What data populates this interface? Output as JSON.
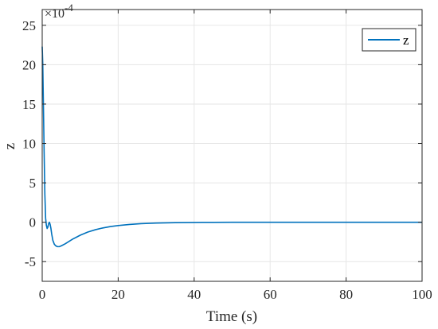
{
  "chart_data": {
    "type": "line",
    "xlabel": "Time (s)",
    "ylabel": "z",
    "exponent_label": "×10",
    "exponent_power": "-4",
    "xlim": [
      0,
      100
    ],
    "ylim": [
      -7.5,
      27
    ],
    "x_ticks": [
      "0",
      "20",
      "40",
      "60",
      "80",
      "100"
    ],
    "y_ticks": [
      "-5",
      "0",
      "5",
      "10",
      "15",
      "20",
      "25"
    ],
    "grid": true,
    "legend": {
      "placement": "top-right",
      "entries": [
        "z"
      ]
    },
    "series": [
      {
        "name": "z",
        "color": "#0072BD",
        "x": [
          0,
          0.15,
          0.3,
          0.5,
          0.7,
          0.9,
          1.1,
          1.3,
          1.5,
          1.7,
          1.9,
          2.1,
          2.3,
          2.5,
          2.8,
          3.2,
          3.6,
          4.0,
          4.5,
          5.0,
          6,
          7,
          8,
          9,
          10,
          12,
          14,
          16,
          18,
          20,
          23,
          26,
          30,
          35,
          40,
          45,
          50,
          60,
          70,
          80,
          90,
          100
        ],
        "values": [
          22.3,
          20.0,
          15.5,
          9.0,
          3.5,
          0.5,
          -0.4,
          -0.8,
          -0.6,
          -0.15,
          0.0,
          -0.3,
          -0.8,
          -1.5,
          -2.3,
          -2.8,
          -3.0,
          -3.1,
          -3.1,
          -3.0,
          -2.75,
          -2.45,
          -2.15,
          -1.9,
          -1.65,
          -1.25,
          -0.95,
          -0.72,
          -0.55,
          -0.42,
          -0.28,
          -0.18,
          -0.1,
          -0.05,
          -0.025,
          -0.012,
          -0.006,
          -0.002,
          -0.001,
          0.0,
          0.0,
          0.0
        ]
      }
    ]
  }
}
